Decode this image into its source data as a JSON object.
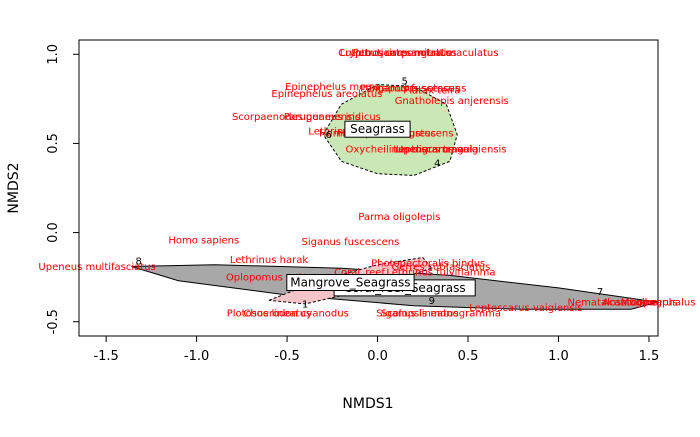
{
  "chart_data": {
    "type": "scatter",
    "xlabel": "NMDS1",
    "ylabel": "NMDS2",
    "xlim": [
      -1.65,
      1.55
    ],
    "ylim": [
      -0.58,
      1.08
    ],
    "x_ticks": [
      -1.5,
      -1.0,
      -0.5,
      0.0,
      0.5,
      1.0,
      1.5
    ],
    "x_tick_labels": [
      "-1.5",
      "-1.0",
      "-0.5",
      "0.0",
      "0.5",
      "1.0",
      "1.5"
    ],
    "y_ticks": [
      -0.5,
      0.0,
      0.5,
      1.0
    ],
    "y_tick_labels": [
      "-0.5",
      "0.0",
      "0.5",
      "1.0"
    ],
    "grid": false,
    "species_color": "#ff0000",
    "species": [
      {
        "label": "Crypto...",
        "x": -0.1,
        "y": 0.99
      },
      {
        "label": "Lutjanus argentimaculatus",
        "x": 0.3,
        "y": 0.99
      },
      {
        "label": "Lutjanus carponotatus",
        "x": 0.1,
        "y": 0.99
      },
      {
        "label": "Petroscirtes mitratus",
        "x": 0.15,
        "y": 0.99
      },
      {
        "label": "Epinephelus merra",
        "x": -0.25,
        "y": 0.8
      },
      {
        "label": "Epinephelus areolatus",
        "x": -0.28,
        "y": 0.76
      },
      {
        "label": "Pentapodus setosus",
        "x": 0.18,
        "y": 0.79
      },
      {
        "label": "Siganus fuscescens",
        "x": 0.22,
        "y": 0.79
      },
      {
        "label": "Platax teira",
        "x": 0.3,
        "y": 0.78
      },
      {
        "label": "Gnatholepis anjerensis",
        "x": 0.41,
        "y": 0.72
      },
      {
        "label": "Scorpaenodes guamensis",
        "x": -0.45,
        "y": 0.63
      },
      {
        "label": "Parupeneus indicus",
        "x": -0.25,
        "y": 0.63
      },
      {
        "label": "Lethrinus lentjan",
        "x": -0.15,
        "y": 0.55
      },
      {
        "label": "Hemiramphus robustus",
        "x": 0.0,
        "y": 0.54
      },
      {
        "label": "Halichoeres nigrescens",
        "x": 0.1,
        "y": 0.54
      },
      {
        "label": "Oxycheilinus digramma",
        "x": 0.15,
        "y": 0.45
      },
      {
        "label": "Upeneus tragula",
        "x": 0.33,
        "y": 0.45
      },
      {
        "label": "Leptoscarus vaigiensis",
        "x": 0.4,
        "y": 0.45
      },
      {
        "label": "Parma oligolepis",
        "x": 0.12,
        "y": 0.07
      },
      {
        "label": "Homo sapiens",
        "x": -0.96,
        "y": -0.06
      },
      {
        "label": "Siganus fuscescens",
        "x": -0.15,
        "y": -0.07
      },
      {
        "label": "Lethrinus harak",
        "x": -0.6,
        "y": -0.17
      },
      {
        "label": "Upeneus multifasciatus",
        "x": -1.55,
        "y": -0.21
      },
      {
        "label": "Photopectoralis bindus",
        "x": 0.28,
        "y": -0.19
      },
      {
        "label": "Gerres subfasciatus",
        "x": 0.35,
        "y": -0.21
      },
      {
        "label": "Lethrinus fulviflamma",
        "x": 0.35,
        "y": -0.24
      },
      {
        "label": "Oplopomus oplopomus",
        "x": -0.52,
        "y": -0.27
      },
      {
        "label": "Coral_reef",
        "x": -0.1,
        "y": -0.24
      },
      {
        "label": "Plotosus lineatus",
        "x": -0.6,
        "y": -0.47
      },
      {
        "label": "Choerodon cyanodus",
        "x": -0.45,
        "y": -0.47
      },
      {
        "label": "Siganus lineatus",
        "x": 0.22,
        "y": -0.47
      },
      {
        "label": "Scolopsis monogramma",
        "x": 0.35,
        "y": -0.47
      },
      {
        "label": "Leptoscarus vaigiensis",
        "x": 0.82,
        "y": -0.44
      },
      {
        "label": "Nematalosa come",
        "x": 1.3,
        "y": -0.41
      },
      {
        "label": "Acanthopagrus",
        "x": 1.45,
        "y": -0.41
      },
      {
        "label": "Mugil cephalus",
        "x": 1.55,
        "y": -0.41
      }
    ],
    "sites": [
      {
        "label": "5",
        "x": 0.15,
        "y": 0.83
      },
      {
        "label": "6",
        "x": -0.27,
        "y": 0.53
      },
      {
        "label": "4",
        "x": 0.33,
        "y": 0.37
      },
      {
        "label": "8",
        "x": -1.32,
        "y": -0.18
      },
      {
        "label": "7",
        "x": 1.23,
        "y": -0.35
      },
      {
        "label": "9",
        "x": 0.3,
        "y": -0.4
      },
      {
        "label": "1",
        "x": -0.4,
        "y": -0.42
      }
    ],
    "hulls": [
      {
        "name": "Seagrass",
        "fill": "#c9e8b5",
        "stroke": "dashed",
        "points": [
          [
            -0.3,
            0.55
          ],
          [
            -0.2,
            0.72
          ],
          [
            0.0,
            0.83
          ],
          [
            0.2,
            0.82
          ],
          [
            0.38,
            0.72
          ],
          [
            0.44,
            0.55
          ],
          [
            0.4,
            0.4
          ],
          [
            0.2,
            0.32
          ],
          [
            0.0,
            0.33
          ],
          [
            -0.2,
            0.4
          ]
        ]
      },
      {
        "name": "Coral_reef_Seagrass",
        "fill": "#a8a8a8",
        "stroke": "solid",
        "points": [
          [
            -1.36,
            -0.19
          ],
          [
            -0.9,
            -0.18
          ],
          [
            -0.2,
            -0.2
          ],
          [
            0.4,
            -0.24
          ],
          [
            1.0,
            -0.31
          ],
          [
            1.55,
            -0.39
          ],
          [
            1.4,
            -0.43
          ],
          [
            0.8,
            -0.43
          ],
          [
            0.2,
            -0.41
          ],
          [
            -0.5,
            -0.35
          ],
          [
            -1.1,
            -0.27
          ]
        ]
      },
      {
        "name": "Mangrove_Seagrass",
        "fill": "#f7c4c9",
        "stroke": "dashed",
        "points": [
          [
            -0.6,
            -0.38
          ],
          [
            -0.35,
            -0.28
          ],
          [
            0.0,
            -0.18
          ],
          [
            0.25,
            -0.14
          ],
          [
            0.3,
            -0.2
          ],
          [
            -0.1,
            -0.33
          ],
          [
            -0.4,
            -0.4
          ]
        ]
      }
    ],
    "group_labels": [
      {
        "label": "Seagrass",
        "x": 0.0,
        "y": 0.58
      },
      {
        "label": "Coral_reef_Seagrass",
        "x": 0.15,
        "y": -0.31
      },
      {
        "label": "Mangrove_Seagrass",
        "x": -0.15,
        "y": -0.28
      }
    ]
  }
}
